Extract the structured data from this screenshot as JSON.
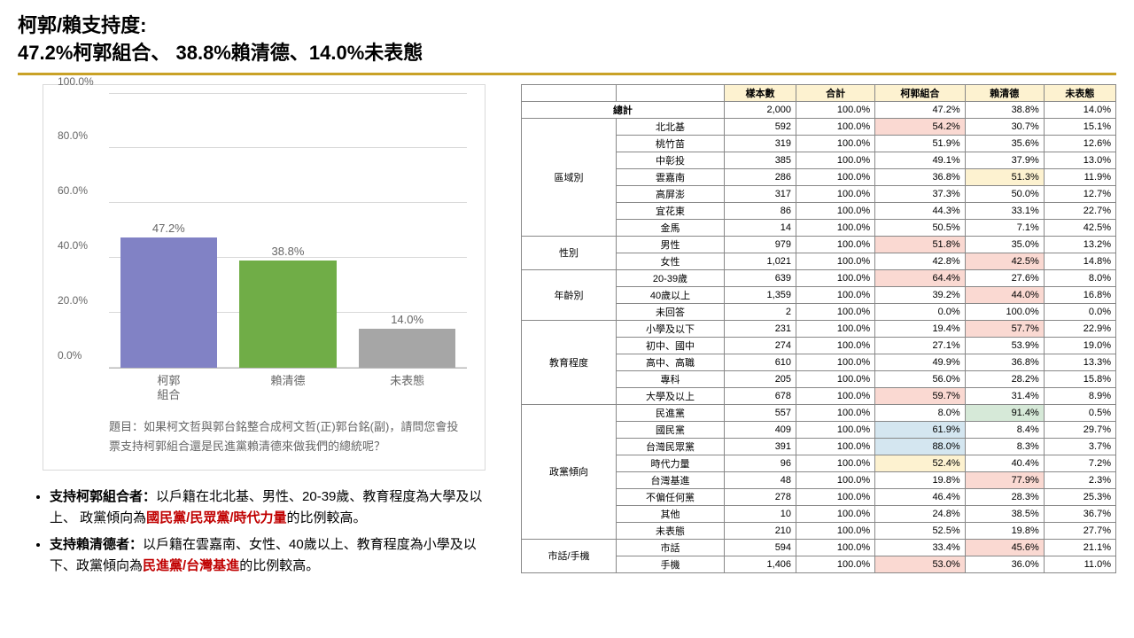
{
  "title_line1": "柯郭/賴支持度:",
  "title_line2": "47.2%柯郭組合、 38.8%賴清德、14.0%未表態",
  "chart": {
    "type": "bar",
    "ylim": [
      0,
      100
    ],
    "ytick_step": 20,
    "ytick_suffix": "%",
    "grid_color": "#d9d9d9",
    "border_color": "#d9d9d9",
    "bars": [
      {
        "label": "柯郭\n組合",
        "value": 47.2,
        "color": "#8182c5"
      },
      {
        "label": "賴清德",
        "value": 38.8,
        "color": "#70ad47"
      },
      {
        "label": "未表態",
        "value": 14.0,
        "color": "#a6a6a6"
      }
    ],
    "question": "題目：如果柯文哲與郭台銘整合成柯文哲(正)郭台銘(副)，請問您會投票支持柯郭組合還是民進黨賴清德來做我們的總統呢？"
  },
  "notes": {
    "n1_lead": "支持柯郭組合者：",
    "n1_body_a": "以戶籍在北北基、男性、20-39歲、教育程度為大學及以上、 政黨傾向為",
    "n1_red": "國民黨/民眾黨/時代力量",
    "n1_body_b": "的比例較高。",
    "n2_lead": "支持賴清德者：",
    "n2_body_a": "以戶籍在雲嘉南、女性、40歲以上、教育程度為小學及以下、政黨傾向為",
    "n2_red": "民進黨/台灣基進",
    "n2_body_b": "的比例較高。"
  },
  "table": {
    "headers": [
      "",
      "",
      "樣本數",
      "合計",
      "柯郭組合",
      "賴清德",
      "未表態"
    ],
    "total_row": {
      "label": "總計",
      "n": "2,000",
      "pct": "100.0%",
      "a": "47.2%",
      "b": "38.8%",
      "c": "14.0%"
    },
    "groups": [
      {
        "name": "區域別",
        "rows": [
          {
            "label": "北北基",
            "n": "592",
            "pct": "100.0%",
            "a": "54.2%",
            "b": "30.7%",
            "c": "15.1%",
            "hl": {
              "a": "r"
            }
          },
          {
            "label": "桃竹苗",
            "n": "319",
            "pct": "100.0%",
            "a": "51.9%",
            "b": "35.6%",
            "c": "12.6%"
          },
          {
            "label": "中彰投",
            "n": "385",
            "pct": "100.0%",
            "a": "49.1%",
            "b": "37.9%",
            "c": "13.0%"
          },
          {
            "label": "雲嘉南",
            "n": "286",
            "pct": "100.0%",
            "a": "36.8%",
            "b": "51.3%",
            "c": "11.9%",
            "hl": {
              "b": "y"
            }
          },
          {
            "label": "高屏澎",
            "n": "317",
            "pct": "100.0%",
            "a": "37.3%",
            "b": "50.0%",
            "c": "12.7%"
          },
          {
            "label": "宜花東",
            "n": "86",
            "pct": "100.0%",
            "a": "44.3%",
            "b": "33.1%",
            "c": "22.7%"
          },
          {
            "label": "金馬",
            "n": "14",
            "pct": "100.0%",
            "a": "50.5%",
            "b": "7.1%",
            "c": "42.5%"
          }
        ]
      },
      {
        "name": "性別",
        "rows": [
          {
            "label": "男性",
            "n": "979",
            "pct": "100.0%",
            "a": "51.8%",
            "b": "35.0%",
            "c": "13.2%",
            "hl": {
              "a": "r"
            }
          },
          {
            "label": "女性",
            "n": "1,021",
            "pct": "100.0%",
            "a": "42.8%",
            "b": "42.5%",
            "c": "14.8%",
            "hl": {
              "b": "r"
            }
          }
        ]
      },
      {
        "name": "年齡別",
        "rows": [
          {
            "label": "20-39歲",
            "n": "639",
            "pct": "100.0%",
            "a": "64.4%",
            "b": "27.6%",
            "c": "8.0%",
            "hl": {
              "a": "r"
            }
          },
          {
            "label": "40歲以上",
            "n": "1,359",
            "pct": "100.0%",
            "a": "39.2%",
            "b": "44.0%",
            "c": "16.8%",
            "hl": {
              "b": "r"
            }
          },
          {
            "label": "未回答",
            "n": "2",
            "pct": "100.0%",
            "a": "0.0%",
            "b": "100.0%",
            "c": "0.0%"
          }
        ]
      },
      {
        "name": "教育程度",
        "rows": [
          {
            "label": "小學及以下",
            "n": "231",
            "pct": "100.0%",
            "a": "19.4%",
            "b": "57.7%",
            "c": "22.9%",
            "hl": {
              "b": "r"
            }
          },
          {
            "label": "初中、國中",
            "n": "274",
            "pct": "100.0%",
            "a": "27.1%",
            "b": "53.9%",
            "c": "19.0%"
          },
          {
            "label": "高中、高職",
            "n": "610",
            "pct": "100.0%",
            "a": "49.9%",
            "b": "36.8%",
            "c": "13.3%"
          },
          {
            "label": "專科",
            "n": "205",
            "pct": "100.0%",
            "a": "56.0%",
            "b": "28.2%",
            "c": "15.8%"
          },
          {
            "label": "大學及以上",
            "n": "678",
            "pct": "100.0%",
            "a": "59.7%",
            "b": "31.4%",
            "c": "8.9%",
            "hl": {
              "a": "r"
            }
          }
        ]
      },
      {
        "name": "政黨傾向",
        "rows": [
          {
            "label": "民進黨",
            "n": "557",
            "pct": "100.0%",
            "a": "8.0%",
            "b": "91.4%",
            "c": "0.5%",
            "hl": {
              "b": "g"
            }
          },
          {
            "label": "國民黨",
            "n": "409",
            "pct": "100.0%",
            "a": "61.9%",
            "b": "8.4%",
            "c": "29.7%",
            "hl": {
              "a": "b"
            }
          },
          {
            "label": "台灣民眾黨",
            "n": "391",
            "pct": "100.0%",
            "a": "88.0%",
            "b": "8.3%",
            "c": "3.7%",
            "hl": {
              "a": "b"
            }
          },
          {
            "label": "時代力量",
            "n": "96",
            "pct": "100.0%",
            "a": "52.4%",
            "b": "40.4%",
            "c": "7.2%",
            "hl": {
              "a": "y"
            }
          },
          {
            "label": "台灣基進",
            "n": "48",
            "pct": "100.0%",
            "a": "19.8%",
            "b": "77.9%",
            "c": "2.3%",
            "hl": {
              "b": "r"
            }
          },
          {
            "label": "不偏任何黨",
            "n": "278",
            "pct": "100.0%",
            "a": "46.4%",
            "b": "28.3%",
            "c": "25.3%"
          },
          {
            "label": "其他",
            "n": "10",
            "pct": "100.0%",
            "a": "24.8%",
            "b": "38.5%",
            "c": "36.7%"
          },
          {
            "label": "未表態",
            "n": "210",
            "pct": "100.0%",
            "a": "52.5%",
            "b": "19.8%",
            "c": "27.7%"
          }
        ]
      },
      {
        "name": "市話/手機",
        "rows": [
          {
            "label": "市話",
            "n": "594",
            "pct": "100.0%",
            "a": "33.4%",
            "b": "45.6%",
            "c": "21.1%",
            "hl": {
              "b": "r"
            }
          },
          {
            "label": "手機",
            "n": "1,406",
            "pct": "100.0%",
            "a": "53.0%",
            "b": "36.0%",
            "c": "11.0%",
            "hl": {
              "a": "r"
            }
          }
        ]
      }
    ]
  }
}
